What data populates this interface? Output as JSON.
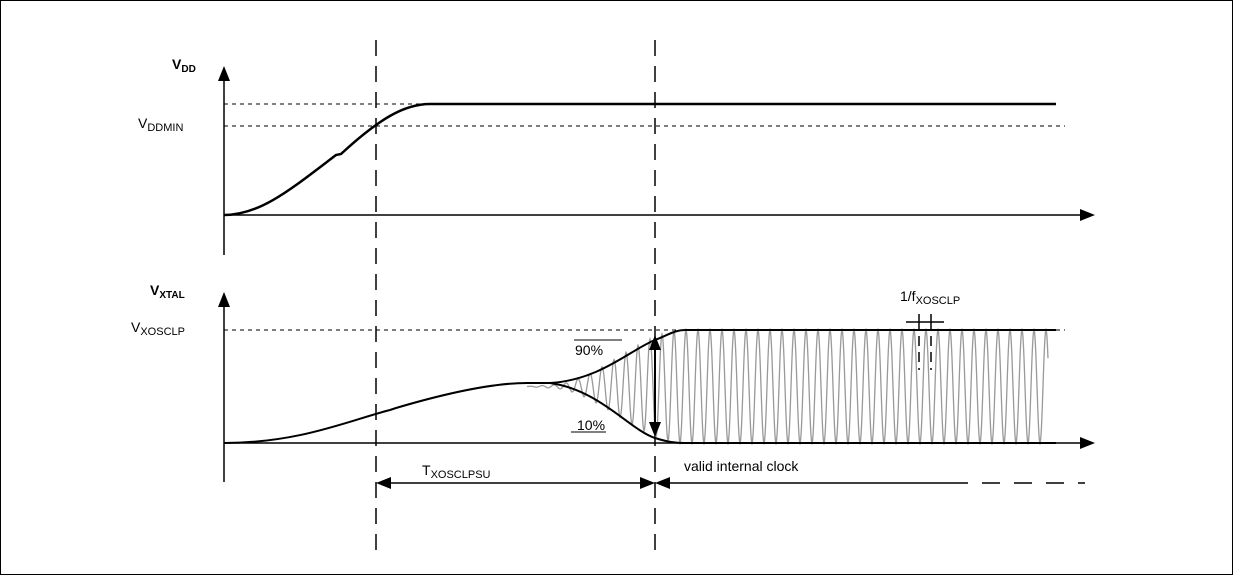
{
  "diagram": {
    "vdd_axis_label": {
      "main": "V",
      "sub": "DD"
    },
    "vddmin_label": {
      "main": "V",
      "sub": "DDMIN"
    },
    "vxtal_axis_label": {
      "main": "V",
      "sub": "XTAL"
    },
    "vxosclp_label": {
      "main": "V",
      "sub": "XOSCLP"
    },
    "period_label": {
      "main": "1/f",
      "sub": "XOSCLP"
    },
    "pct_high": "90%",
    "pct_low": "10%",
    "startup_label": {
      "main": "T",
      "sub": "XOSCLPSU"
    },
    "valid_clock_label": "valid internal clock"
  },
  "colors": {
    "line": "#000000",
    "oscillation": "#999999"
  }
}
